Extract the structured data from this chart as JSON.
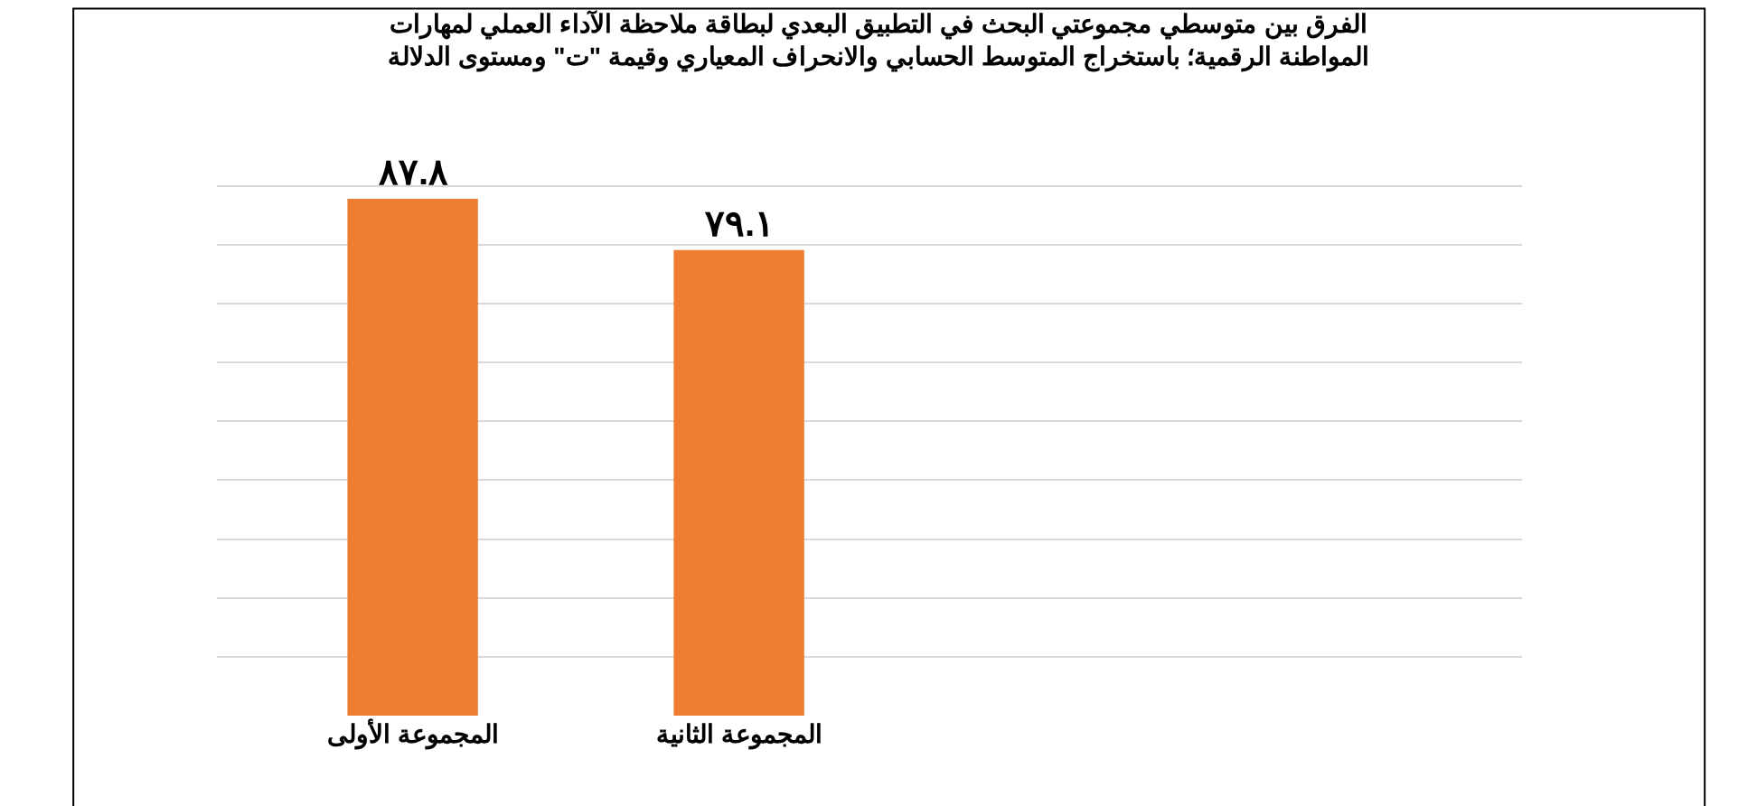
{
  "chart_data": {
    "type": "bar",
    "title": "الفرق بين متوسطي مجموعتي البحث في التطبيق البعدي لبطاقة ملاحظة الآداء العملي لمهارات\nالمواطنة الرقمية؛ باستخراج المتوسط الحسابي والانحراف المعياري وقيمة \"ت\" ومستوى الدلالة",
    "categories": [
      "المجموعة الأولى",
      "المجموعة الثانية"
    ],
    "values": [
      87.8,
      79.1
    ],
    "value_labels": [
      "٨٧.٨",
      "٧٩.١"
    ],
    "color": "#ed7d31",
    "grid": "y",
    "tick_labels": "x"
  }
}
